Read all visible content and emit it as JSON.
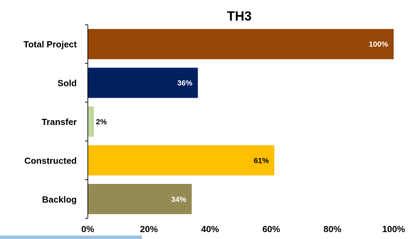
{
  "chart_data": {
    "type": "bar",
    "orientation": "horizontal",
    "title": "TH3",
    "xlabel": "",
    "ylabel": "",
    "categories": [
      "Total Project",
      "Sold",
      "Transfer",
      "Constructed",
      "Backlog"
    ],
    "values": [
      100,
      36,
      2,
      61,
      34
    ],
    "data_labels": [
      "100%",
      "36%",
      "2%",
      "61%",
      "34%"
    ],
    "bar_colors": [
      "#974706",
      "#002060",
      "#C3D69B",
      "#FFC000",
      "#948A54"
    ],
    "label_colors": [
      "#ffffff",
      "#ffffff",
      "#000000",
      "#000000",
      "#ffffff"
    ],
    "xlim": [
      0,
      100
    ],
    "x_ticks": [
      0,
      20,
      40,
      60,
      80,
      100
    ],
    "x_tick_labels": [
      "0%",
      "20%",
      "40%",
      "60%",
      "80%",
      "100%"
    ],
    "grid": false,
    "legend": "none"
  }
}
